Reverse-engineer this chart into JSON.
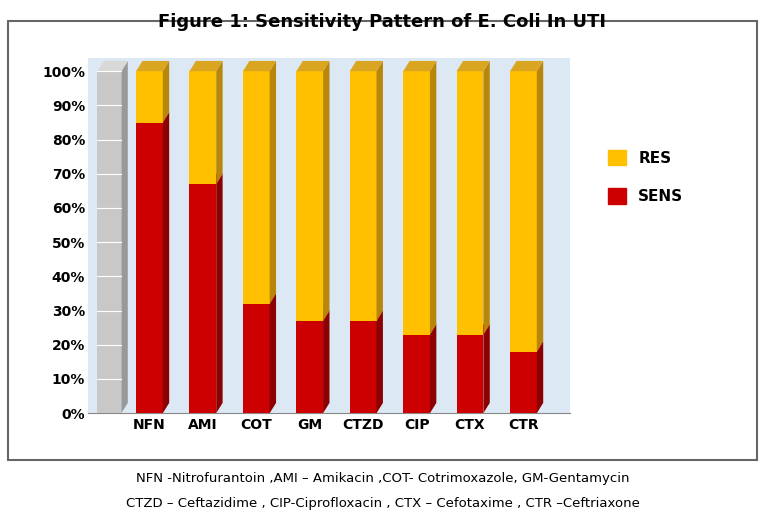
{
  "title": "Figure 1: Sensitivity Pattern of E. Coli In UTI",
  "categories": [
    "NFN",
    "AMI",
    "COT",
    "GM",
    "CTZD",
    "CIP",
    "CTX",
    "CTR"
  ],
  "sens_values": [
    85,
    67,
    32,
    27,
    27,
    23,
    23,
    18
  ],
  "res_values": [
    15,
    33,
    68,
    73,
    73,
    77,
    77,
    82
  ],
  "sens_color": "#CC0000",
  "sens_dark_color": "#8B0000",
  "sens_top_color": "#CC0000",
  "res_color": "#FFC000",
  "res_dark_color": "#B8860B",
  "res_top_color": "#DAA520",
  "legend_res": "RES",
  "legend_sens": "SENS",
  "ylim": [
    0,
    100
  ],
  "yticks": [
    0,
    10,
    20,
    30,
    40,
    50,
    60,
    70,
    80,
    90,
    100
  ],
  "ytick_labels": [
    "0%",
    "10%",
    "20%",
    "30%",
    "40%",
    "50%",
    "60%",
    "70%",
    "80%",
    "90%",
    "100%"
  ],
  "footnote_line1": "NFN -Nitrofurantoin ,AMI – Amikacin ,COT- Cotrimoxazole, GM-Gentamycin",
  "footnote_line2": "CTZD – Ceftazidime , CIP-Ciprofloxacin , CTX – Cefotaxime , CTR –Ceftriaxone",
  "plot_bg_color": "#dce9f5",
  "fig_bg_color": "#ffffff",
  "bar_width": 0.5,
  "depth": 0.15,
  "title_fontsize": 13,
  "tick_fontsize": 10,
  "legend_fontsize": 11,
  "footnote_fontsize": 9.5
}
